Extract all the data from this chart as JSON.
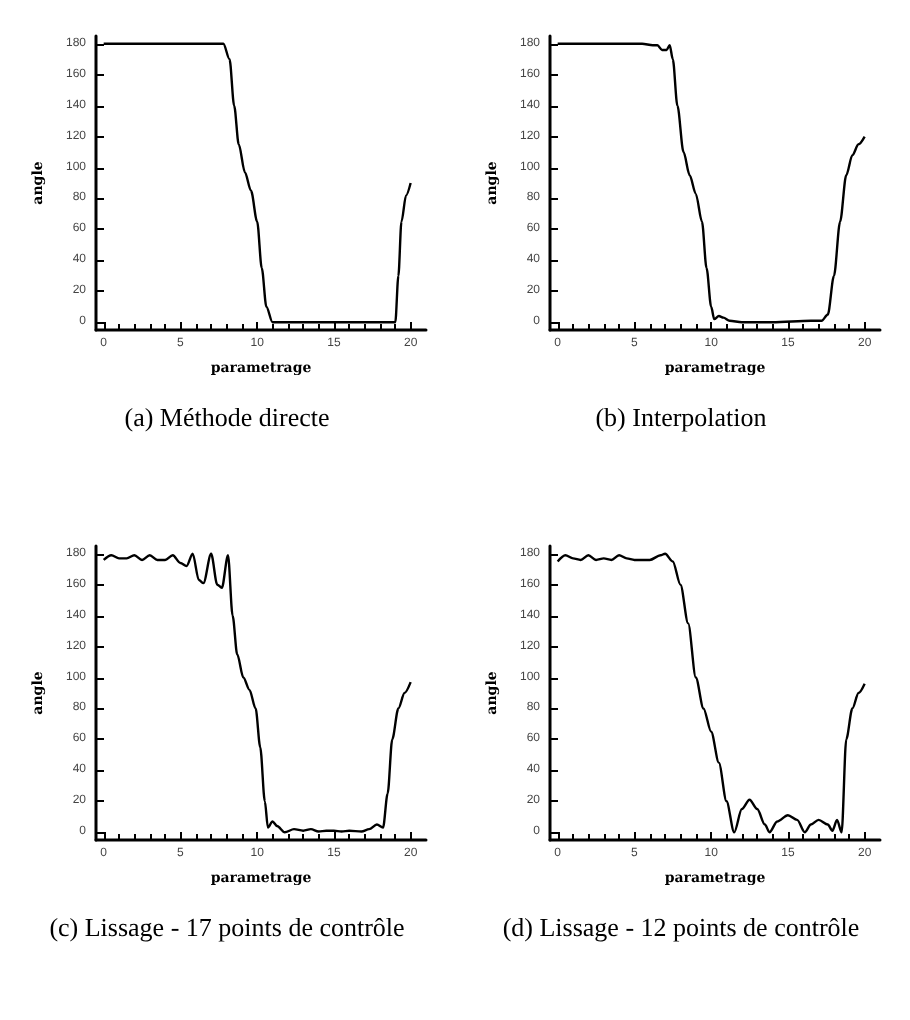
{
  "chart_data": [
    {
      "type": "line",
      "title": "(a) Méthode directe",
      "xlabel": "parametrage",
      "ylabel": "angle",
      "xlim": [
        -0.5,
        21
      ],
      "xticks": [
        0,
        5,
        10,
        15,
        20
      ],
      "ylim": [
        -5,
        185
      ],
      "yticks": [
        0,
        20,
        40,
        60,
        80,
        100,
        120,
        140,
        160,
        180
      ],
      "x": [
        0,
        2,
        4,
        6,
        7.8,
        8.2,
        8.5,
        8.8,
        9.2,
        9.6,
        10,
        10.3,
        10.6,
        11,
        13,
        15,
        17,
        19,
        19.2,
        19.4,
        19.7,
        20
      ],
      "series": [
        {
          "color": "#000000",
          "values": [
            180,
            180,
            180,
            180,
            180,
            170,
            140,
            115,
            97,
            85,
            65,
            35,
            10,
            0,
            0,
            0,
            0,
            0,
            30,
            65,
            82,
            90
          ]
        }
      ]
    },
    {
      "type": "line",
      "title": "(b) Interpolation",
      "xlabel": "parametrage",
      "ylabel": "angle",
      "xlim": [
        -0.5,
        21
      ],
      "xticks": [
        0,
        5,
        10,
        15,
        20
      ],
      "ylim": [
        -5,
        185
      ],
      "yticks": [
        0,
        20,
        40,
        60,
        80,
        100,
        120,
        140,
        160,
        180
      ],
      "x": [
        0,
        2,
        4,
        5.5,
        6.2,
        6.5,
        6.8,
        7.1,
        7.3,
        7.5,
        7.8,
        8.2,
        8.6,
        9,
        9.4,
        9.7,
        10,
        10.2,
        10.5,
        10.8,
        11.2,
        12,
        14,
        16.5,
        17.2,
        17.6,
        18,
        18.4,
        18.8,
        19.2,
        19.6,
        20
      ],
      "series": [
        {
          "color": "#000000",
          "values": [
            180,
            180,
            180,
            180,
            179,
            179,
            176,
            176,
            179,
            170,
            140,
            110,
            95,
            83,
            65,
            35,
            10,
            2,
            4,
            3,
            1,
            0,
            0,
            1,
            1,
            5,
            30,
            65,
            95,
            108,
            115,
            120
          ]
        }
      ]
    },
    {
      "type": "line",
      "title": "(c) Lissage - 17 points de contrôle",
      "xlabel": "parametrage",
      "ylabel": "angle",
      "xlim": [
        -0.5,
        21
      ],
      "xticks": [
        0,
        5,
        10,
        15,
        20
      ],
      "ylim": [
        -5,
        185
      ],
      "yticks": [
        0,
        20,
        40,
        60,
        80,
        100,
        120,
        140,
        160,
        180
      ],
      "x": [
        0,
        0.5,
        1,
        1.5,
        2,
        2.5,
        3,
        3.5,
        4,
        4.5,
        5,
        5.4,
        5.8,
        6.2,
        6.5,
        7,
        7.4,
        7.7,
        8.1,
        8.4,
        8.7,
        9.1,
        9.5,
        9.9,
        10.2,
        10.5,
        10.7,
        11,
        11.3,
        11.8,
        12.4,
        13,
        13.5,
        14,
        14.5,
        15,
        15.5,
        16,
        16.8,
        17.3,
        17.8,
        18.2,
        18.5,
        18.8,
        19.2,
        19.6,
        20
      ],
      "series": [
        {
          "color": "#000000",
          "values": [
            176,
            179,
            177,
            177,
            179,
            176,
            179,
            176,
            176,
            179,
            174,
            172,
            180,
            163,
            161,
            180,
            160,
            158,
            179,
            140,
            115,
            100,
            92,
            80,
            55,
            20,
            3,
            7,
            4,
            0,
            2,
            1,
            2,
            0.5,
            1,
            1,
            0.5,
            1,
            0.5,
            2,
            5,
            3,
            25,
            60,
            80,
            90,
            97
          ]
        }
      ]
    },
    {
      "type": "line",
      "title": "(d) Lissage - 12 points de contrôle",
      "xlabel": "parametrage",
      "ylabel": "angle",
      "xlim": [
        -0.5,
        21
      ],
      "xticks": [
        0,
        5,
        10,
        15,
        20
      ],
      "ylim": [
        -5,
        185
      ],
      "yticks": [
        0,
        20,
        40,
        60,
        80,
        100,
        120,
        140,
        160,
        180
      ],
      "x": [
        0,
        0.5,
        1,
        1.5,
        2,
        2.5,
        3,
        3.5,
        4,
        4.5,
        5,
        6,
        6.7,
        7,
        7.5,
        8,
        8.5,
        9,
        9.5,
        10,
        10.5,
        11,
        11.5,
        12,
        12.5,
        13,
        13.5,
        13.8,
        14.3,
        15,
        15.6,
        16.1,
        16.5,
        17,
        17.6,
        17.9,
        18.2,
        18.5,
        18.8,
        19.2,
        19.6,
        20
      ],
      "series": [
        {
          "color": "#000000",
          "values": [
            175,
            179,
            177,
            176,
            179,
            176,
            177,
            176,
            179,
            177,
            176,
            176,
            179,
            180,
            175,
            160,
            135,
            100,
            80,
            65,
            45,
            20,
            0,
            15,
            21,
            15,
            5,
            0,
            7,
            11,
            8,
            0,
            5,
            8,
            5,
            1,
            8,
            0,
            60,
            80,
            90,
            96
          ]
        }
      ]
    }
  ]
}
